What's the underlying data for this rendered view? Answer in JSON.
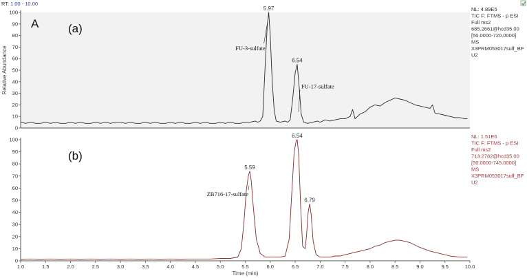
{
  "header": {
    "rt_label": "RT:",
    "rt_range": "1.00 - 10.00"
  },
  "colors": {
    "panel_a_trace": "#2b2b2b",
    "panel_b_trace": "#8b2a2a",
    "panel_a_bg": "#f2f2f2",
    "meta_b_text": "#a33a3a",
    "rt_range_text": "#2a3f9a",
    "corner_icon": "#3aa64a"
  },
  "corner_icon": "green-refresh-icon",
  "chart_data": [
    {
      "type": "line",
      "panel_letter": "A",
      "panel_label": "(a)",
      "ylabel": "Relative Abundance",
      "xlabel": "",
      "xlim": [
        1.0,
        10.0
      ],
      "ylim": [
        0,
        100
      ],
      "yticks": [
        0,
        10,
        20,
        30,
        40,
        50,
        60,
        70,
        80,
        90,
        100
      ],
      "grid": false,
      "meta": [
        "NL: 4.89E5",
        "TIC F: FTMS - p ESI",
        "Full ms2",
        "685.2661@hcd35.00",
        "[50.0000-720.0000]",
        "MS",
        "X3PRM053017sulf_BF",
        "U2"
      ],
      "peak_labels": [
        {
          "x": 5.97,
          "y": 100,
          "text": "5.97"
        },
        {
          "x": 6.54,
          "y": 55,
          "text": "6.54"
        }
      ],
      "annotations": [
        {
          "text": "FU-3-sulfate",
          "x": 5.97,
          "y": 69
        },
        {
          "text": "FU-17-sulfate",
          "x": 6.54,
          "y": 36
        }
      ],
      "series": [
        {
          "x": [
            1.0,
            1.1,
            1.2,
            1.3,
            1.4,
            1.5,
            1.6,
            1.7,
            1.8,
            1.9,
            2.0,
            2.1,
            2.2,
            2.3,
            2.4,
            2.5,
            2.6,
            2.7,
            2.8,
            2.9,
            3.0,
            3.1,
            3.2,
            3.3,
            3.4,
            3.5,
            3.6,
            3.7,
            3.8,
            3.9,
            4.0,
            4.1,
            4.2,
            4.3,
            4.4,
            4.5,
            4.6,
            4.7,
            4.8,
            4.9,
            5.0,
            5.1,
            5.2,
            5.3,
            5.4,
            5.5,
            5.6,
            5.7,
            5.75,
            5.8,
            5.85,
            5.9,
            5.94,
            5.97,
            6.0,
            6.04,
            6.08,
            6.12,
            6.2,
            6.3,
            6.35,
            6.4,
            6.45,
            6.5,
            6.54,
            6.58,
            6.62,
            6.67,
            6.75,
            6.85,
            6.95,
            7.0,
            7.1,
            7.2,
            7.3,
            7.4,
            7.5,
            7.6,
            7.65,
            7.7,
            7.8,
            7.9,
            8.0,
            8.1,
            8.2,
            8.3,
            8.4,
            8.5,
            8.6,
            8.7,
            8.8,
            8.9,
            9.0,
            9.1,
            9.2,
            9.25,
            9.3,
            9.4,
            9.5,
            9.6,
            9.7,
            9.8,
            9.9,
            9.95
          ],
          "y": [
            5,
            4,
            5,
            4,
            4,
            5,
            4,
            5,
            4,
            4,
            5,
            4,
            5,
            4,
            4,
            5,
            4,
            5,
            4,
            5,
            5,
            4,
            5,
            4,
            4,
            5,
            4,
            5,
            4,
            4,
            5,
            4,
            5,
            4,
            4,
            5,
            4,
            5,
            4,
            4,
            5,
            4,
            5,
            4,
            4,
            5,
            5,
            6,
            5,
            6,
            10,
            55,
            88,
            100,
            80,
            40,
            15,
            6,
            5,
            6,
            5,
            7,
            25,
            48,
            55,
            35,
            12,
            5,
            4,
            5,
            6,
            5,
            7,
            6,
            7,
            8,
            8,
            10,
            16,
            8,
            12,
            14,
            18,
            20,
            19,
            22,
            24,
            26,
            25,
            24,
            22,
            20,
            19,
            18,
            17,
            20,
            13,
            12,
            11,
            10,
            9,
            9,
            8,
            8
          ]
        }
      ]
    },
    {
      "type": "line",
      "panel_letter": "",
      "panel_label": "(b)",
      "ylabel": "",
      "xlabel": "Time (min)",
      "xlim": [
        1.0,
        10.0
      ],
      "ylim": [
        0,
        100
      ],
      "yticks": [
        0,
        10,
        20,
        30,
        40,
        50,
        60,
        70,
        80,
        90,
        100
      ],
      "xticks": [
        1.0,
        1.5,
        2.0,
        2.5,
        3.0,
        3.5,
        4.0,
        4.5,
        5.0,
        5.5,
        6.0,
        6.5,
        7.0,
        7.5,
        8.0,
        8.5,
        9.0,
        9.5,
        10.0
      ],
      "grid": false,
      "meta": [
        "NL: 1.51E6",
        "TIC F: FTMS - p ESI",
        "Full ms2",
        "713.2782@hcd35.00",
        "[50.0000-745.0000]",
        "MS",
        "X3PRM053017sulf_BF",
        "U2"
      ],
      "peak_labels": [
        {
          "x": 5.59,
          "y": 74,
          "text": "5.59"
        },
        {
          "x": 6.54,
          "y": 100,
          "text": "6.54"
        },
        {
          "x": 6.79,
          "y": 47,
          "text": "6.79"
        }
      ],
      "annotations": [
        {
          "text": "ZB716-17-sulfate",
          "x": 5.59,
          "y": 55
        }
      ],
      "series": [
        {
          "x": [
            1.0,
            1.2,
            1.4,
            1.6,
            1.8,
            2.0,
            2.2,
            2.4,
            2.6,
            2.8,
            3.0,
            3.2,
            3.4,
            3.6,
            3.8,
            4.0,
            4.2,
            4.4,
            4.6,
            4.8,
            5.0,
            5.2,
            5.35,
            5.42,
            5.47,
            5.52,
            5.56,
            5.59,
            5.62,
            5.66,
            5.72,
            5.8,
            5.9,
            6.0,
            6.1,
            6.2,
            6.3,
            6.38,
            6.43,
            6.48,
            6.52,
            6.54,
            6.57,
            6.61,
            6.65,
            6.7,
            6.73,
            6.76,
            6.79,
            6.82,
            6.86,
            6.92,
            7.0,
            7.1,
            7.2,
            7.3,
            7.4,
            7.5,
            7.6,
            7.7,
            7.8,
            7.9,
            8.0,
            8.1,
            8.2,
            8.3,
            8.4,
            8.5,
            8.6,
            8.7,
            8.8,
            8.9,
            9.0,
            9.2,
            9.4,
            9.6,
            9.8,
            9.9,
            9.95
          ],
          "y": [
            1,
            1.5,
            1,
            1.5,
            1,
            1.5,
            1,
            1.5,
            1,
            1.5,
            1,
            1.5,
            1,
            1.5,
            1,
            1.5,
            1,
            1.5,
            1.5,
            1.5,
            2,
            2,
            3,
            10,
            30,
            58,
            70,
            74,
            66,
            45,
            18,
            6,
            3,
            3,
            3,
            3,
            4,
            18,
            55,
            90,
            99,
            100,
            88,
            45,
            12,
            10,
            22,
            40,
            47,
            38,
            16,
            5,
            3,
            3,
            3,
            4,
            4,
            5,
            6,
            7,
            8,
            9,
            10,
            12,
            13,
            15,
            16,
            17,
            17,
            16,
            15,
            13,
            11,
            8,
            6,
            4,
            3,
            3,
            3
          ]
        }
      ]
    }
  ]
}
